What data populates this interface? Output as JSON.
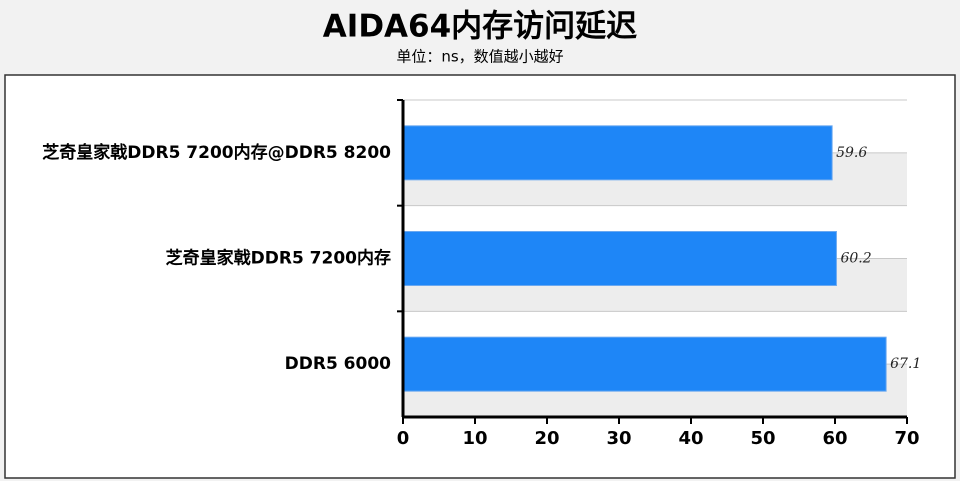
{
  "chart_data": {
    "type": "bar",
    "orientation": "horizontal",
    "title": "AIDA64内存访问延迟",
    "subtitle": "单位：ns，数值越小越好",
    "categories": [
      "芝奇皇家戟DDR5 7200内存@DDR5 8200",
      "芝奇皇家戟DDR5 7200内存",
      "DDR5 6000"
    ],
    "values": [
      59.6,
      60.2,
      67.1
    ],
    "color": "#1e86f7",
    "xlim": [
      0,
      70
    ],
    "xticks": [
      0,
      10,
      20,
      30,
      40,
      50,
      60,
      70
    ],
    "grid": true
  }
}
